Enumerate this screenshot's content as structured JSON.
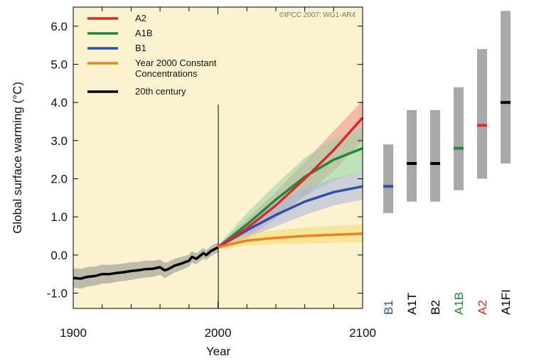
{
  "chart_data": {
    "type": "line",
    "copyright": "©IPCC 2007: WG1-AR4",
    "xlabel": "Year",
    "ylabel": "Global surface warming (°C)",
    "xlim": [
      1900,
      2100
    ],
    "ylim": [
      -1.4,
      6.5
    ],
    "x_ticks": [
      "1900",
      "2000",
      "2100"
    ],
    "y_ticks": [
      "-1.0",
      "0.0",
      "1.0",
      "2.0",
      "3.0",
      "4.0",
      "5.0",
      "6.0"
    ],
    "background": "#fbf3cf",
    "divider_year": 2000,
    "legend_position": "top-left",
    "series": [
      {
        "name": "20th century",
        "color": "#000000",
        "band_color": "#8c8c8c",
        "x": [
          1900,
          1905,
          1910,
          1915,
          1920,
          1925,
          1930,
          1935,
          1940,
          1945,
          1950,
          1955,
          1960,
          1963,
          1965,
          1970,
          1975,
          1980,
          1982,
          1985,
          1990,
          1992,
          1995,
          2000
        ],
        "values": [
          -0.6,
          -0.62,
          -0.57,
          -0.55,
          -0.5,
          -0.5,
          -0.47,
          -0.45,
          -0.42,
          -0.4,
          -0.37,
          -0.36,
          -0.32,
          -0.4,
          -0.38,
          -0.28,
          -0.22,
          -0.15,
          -0.05,
          -0.1,
          0.05,
          0.0,
          0.1,
          0.2
        ],
        "lower": [
          -0.85,
          -0.88,
          -0.83,
          -0.8,
          -0.75,
          -0.74,
          -0.7,
          -0.68,
          -0.65,
          -0.62,
          -0.59,
          -0.57,
          -0.52,
          -0.6,
          -0.57,
          -0.46,
          -0.39,
          -0.31,
          -0.2,
          -0.24,
          -0.09,
          -0.13,
          -0.03,
          0.07
        ],
        "upper": [
          -0.35,
          -0.36,
          -0.31,
          -0.3,
          -0.25,
          -0.26,
          -0.24,
          -0.22,
          -0.19,
          -0.18,
          -0.15,
          -0.15,
          -0.12,
          -0.2,
          -0.19,
          -0.1,
          -0.05,
          0.01,
          0.1,
          0.04,
          0.19,
          0.13,
          0.23,
          0.33
        ]
      },
      {
        "name": "A2",
        "color": "#e0262b",
        "band_color": "#f08a8c",
        "x": [
          2000,
          2020,
          2040,
          2060,
          2080,
          2100
        ],
        "values": [
          0.2,
          0.7,
          1.3,
          2.0,
          2.75,
          3.6
        ],
        "lower": [
          0.15,
          0.45,
          0.95,
          1.55,
          2.2,
          3.0
        ],
        "upper": [
          0.25,
          0.95,
          1.65,
          2.45,
          3.25,
          4.05
        ]
      },
      {
        "name": "A1B",
        "color": "#1b8a3c",
        "band_color": "#8fd3a6",
        "x": [
          2000,
          2020,
          2040,
          2060,
          2080,
          2100
        ],
        "values": [
          0.2,
          0.8,
          1.45,
          2.05,
          2.5,
          2.8
        ],
        "lower": [
          0.15,
          0.5,
          1.05,
          1.55,
          1.95,
          2.2
        ],
        "upper": [
          0.25,
          1.1,
          1.85,
          2.55,
          3.05,
          3.35
        ]
      },
      {
        "name": "B1",
        "color": "#2f4fa8",
        "band_color": "#aab3e0",
        "x": [
          2000,
          2020,
          2040,
          2060,
          2080,
          2100
        ],
        "values": [
          0.2,
          0.65,
          1.05,
          1.4,
          1.65,
          1.8
        ],
        "lower": [
          0.15,
          0.45,
          0.75,
          1.05,
          1.3,
          1.45
        ],
        "upper": [
          0.25,
          0.85,
          1.35,
          1.75,
          2.0,
          2.2
        ]
      },
      {
        "name": "Year 2000 Constant Concentrations",
        "color": "#f0821e",
        "band_color": "#f4d86e",
        "x": [
          2000,
          2020,
          2040,
          2060,
          2080,
          2100
        ],
        "values": [
          0.2,
          0.38,
          0.45,
          0.5,
          0.53,
          0.56
        ],
        "lower": [
          0.15,
          0.25,
          0.28,
          0.3,
          0.32,
          0.33
        ],
        "upper": [
          0.25,
          0.55,
          0.65,
          0.72,
          0.76,
          0.8
        ]
      }
    ],
    "legend": [
      {
        "lines": [
          "A2"
        ],
        "color": "#e0262b"
      },
      {
        "lines": [
          "A1B"
        ],
        "color": "#1b8a3c"
      },
      {
        "lines": [
          "B1"
        ],
        "color": "#2f4fa8"
      },
      {
        "lines": [
          "Year 2000 Constant",
          "Concentrations"
        ],
        "color": "#f0821e"
      },
      {
        "lines": [
          "20th century"
        ],
        "color": "#000000"
      }
    ],
    "range_color": "#a9a9ab",
    "ranges": [
      {
        "name": "B1",
        "low": 1.1,
        "high": 2.9,
        "best": 1.8,
        "color": "#2f4fa8"
      },
      {
        "name": "A1T",
        "low": 1.4,
        "high": 3.8,
        "best": 2.4,
        "color": "#000000"
      },
      {
        "name": "B2",
        "low": 1.4,
        "high": 3.8,
        "best": 2.4,
        "color": "#000000"
      },
      {
        "name": "A1B",
        "low": 1.7,
        "high": 4.4,
        "best": 2.8,
        "color": "#1b8a3c"
      },
      {
        "name": "A2",
        "low": 2.0,
        "high": 5.4,
        "best": 3.4,
        "color": "#e0262b"
      },
      {
        "name": "A1FI",
        "low": 2.4,
        "high": 6.4,
        "best": 4.0,
        "color": "#000000"
      }
    ]
  }
}
